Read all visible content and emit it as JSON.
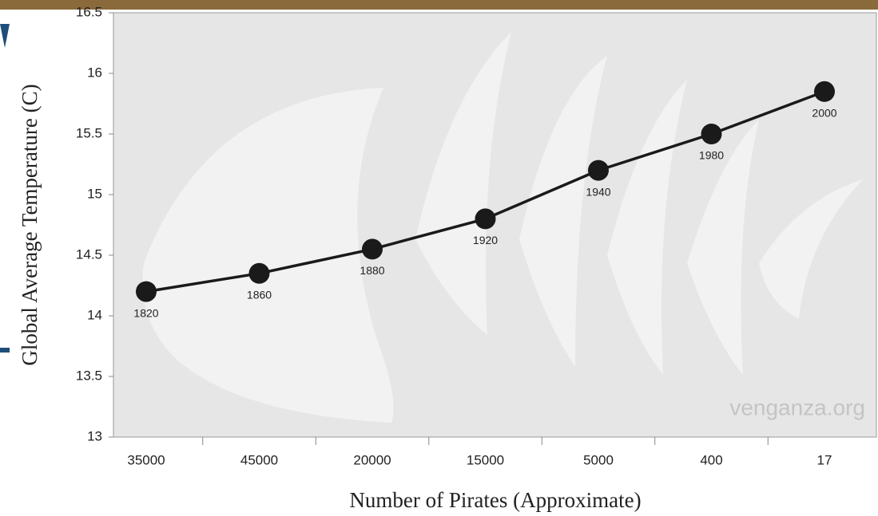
{
  "chart_data": {
    "type": "line",
    "x_label": "Number of Pirates (Approximate)",
    "y_label": "Global Average Temperature (C)",
    "categories": [
      "35000",
      "45000",
      "20000",
      "15000",
      "5000",
      "400",
      "17"
    ],
    "series": [
      {
        "name": null,
        "color": "#1a1a1a",
        "values": [
          14.2,
          14.35,
          14.55,
          14.8,
          15.2,
          15.5,
          15.85
        ]
      }
    ],
    "point_labels": [
      "1820",
      "1860",
      "1880",
      "1920",
      "1940",
      "1980",
      "2000"
    ],
    "ylim": [
      13,
      16.5
    ],
    "yticks": [
      13,
      13.5,
      14,
      14.5,
      15,
      15.5,
      16,
      16.5
    ],
    "watermark": "venganza.org",
    "grid": false
  }
}
